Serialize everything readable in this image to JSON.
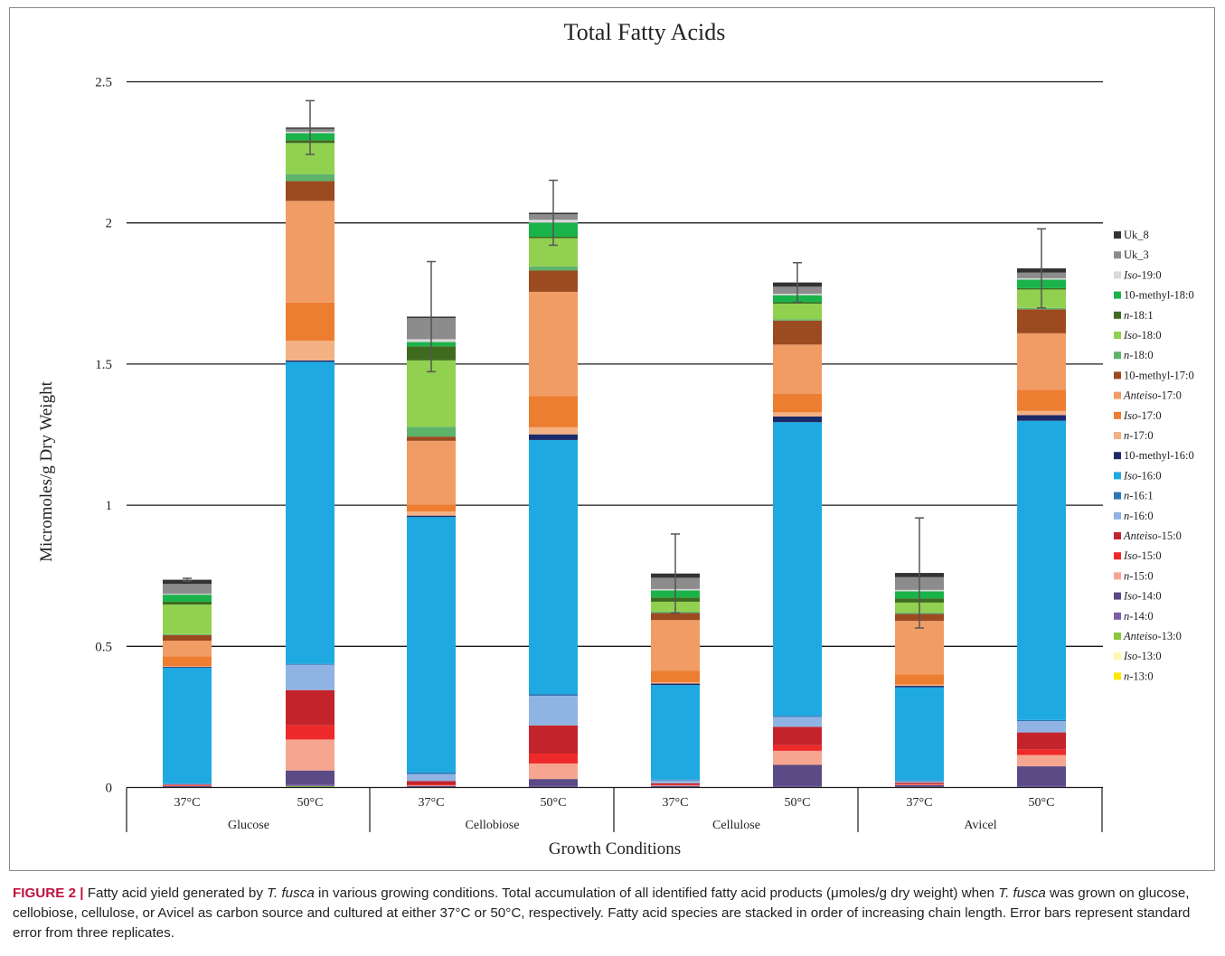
{
  "caption": {
    "label": "FIGURE 2 |",
    "segments": [
      {
        "t": " Fatty acid yield generated by ",
        "i": false
      },
      {
        "t": "T. fusca",
        "i": true
      },
      {
        "t": " in various growing conditions. Total accumulation of all identified fatty acid products (μmoles/g dry weight) when ",
        "i": false
      },
      {
        "t": "T. fusca",
        "i": true
      },
      {
        "t": " was grown on glucose, cellobiose, cellulose, or Avicel as carbon source and cultured at either 37°C or 50°C, respectively. Fatty acid species are stacked in order of increasing chain length. Error bars represent standard error from three replicates.",
        "i": false
      }
    ]
  },
  "chart_data": {
    "type": "bar",
    "stacked": true,
    "title": "Total Fatty Acids",
    "xlabel": "Growth Conditions",
    "ylabel": "Micromoles/g Dry Weight",
    "ylim": [
      0,
      2.5
    ],
    "yticks": [
      "0",
      "0.5",
      "1",
      "1.5",
      "2",
      "2.5"
    ],
    "yticks_values": [
      0,
      0.5,
      1,
      1.5,
      2,
      2.5
    ],
    "grid": true,
    "legend_position": "right",
    "categories": [
      "37°C",
      "50°C",
      "37°C",
      "50°C",
      "37°C",
      "50°C",
      "37°C",
      "50°C"
    ],
    "groups": [
      "Glucose",
      "Cellobiose",
      "Cellulose",
      "Avicel"
    ],
    "error": [
      0.005,
      0.095,
      0.195,
      0.115,
      0.14,
      0.07,
      0.195,
      0.14
    ],
    "series": [
      {
        "name": "n-13:0",
        "prefix": "n",
        "suffix": "-13:0",
        "color": "#ffe600",
        "values": [
          0,
          0,
          0,
          0,
          0,
          0,
          0,
          0
        ]
      },
      {
        "name": "Iso-13:0",
        "prefix": "Iso",
        "suffix": "-13:0",
        "color": "#fff6b0",
        "values": [
          0,
          0,
          0,
          0,
          0,
          0,
          0,
          0
        ]
      },
      {
        "name": "Anteiso-13:0",
        "prefix": "Anteiso",
        "suffix": "-13:0",
        "color": "#8cc63f",
        "values": [
          0,
          0.005,
          0,
          0,
          0,
          0,
          0,
          0
        ]
      },
      {
        "name": "n-14:0",
        "prefix": "n",
        "suffix": "-14:0",
        "color": "#7b5ea7",
        "values": [
          0.003,
          0.005,
          0.003,
          0.005,
          0.003,
          0.005,
          0.003,
          0.005
        ]
      },
      {
        "name": "Iso-14:0",
        "prefix": "Iso",
        "suffix": "-14:0",
        "color": "#5a4a86",
        "values": [
          0.002,
          0.05,
          0.003,
          0.025,
          0.003,
          0.075,
          0.005,
          0.07
        ]
      },
      {
        "name": "n-15:0",
        "prefix": "n",
        "suffix": "-15:0",
        "color": "#f6a690",
        "values": [
          0.002,
          0.11,
          0.002,
          0.055,
          0.002,
          0.05,
          0.002,
          0.04
        ]
      },
      {
        "name": "Iso-15:0",
        "prefix": "Iso",
        "suffix": "-15:0",
        "color": "#ee2a2a",
        "values": [
          0.001,
          0.05,
          0.003,
          0.035,
          0.002,
          0.02,
          0.002,
          0.02
        ]
      },
      {
        "name": "Anteiso-15:0",
        "prefix": "Anteiso",
        "suffix": "-15:0",
        "color": "#c3242b",
        "values": [
          0.002,
          0.125,
          0.012,
          0.1,
          0.005,
          0.065,
          0.005,
          0.06
        ]
      },
      {
        "name": "n-16:0",
        "prefix": "n",
        "suffix": "-16:0",
        "color": "#8fb4e3",
        "values": [
          0.002,
          0.09,
          0.025,
          0.105,
          0.01,
          0.035,
          0.005,
          0.04
        ]
      },
      {
        "name": "n-16:1",
        "prefix": "n",
        "suffix": "-16:1",
        "color": "#2e75b6",
        "values": [
          0.002,
          0.003,
          0.005,
          0.006,
          0.003,
          0.004,
          0.003,
          0.004
        ]
      },
      {
        "name": "Iso-16:0",
        "prefix": "Iso",
        "suffix": "-16:0",
        "color": "#1eaae1",
        "values": [
          0.41,
          1.07,
          0.905,
          0.9,
          0.335,
          1.04,
          0.33,
          1.06
        ]
      },
      {
        "name": "10-methyl-16:0",
        "prefix": "",
        "suffix": "10-methyl-16:0",
        "color": "#1b2a6b",
        "values": [
          0.003,
          0.005,
          0.005,
          0.02,
          0.005,
          0.02,
          0.005,
          0.02
        ]
      },
      {
        "name": "n-17:0",
        "prefix": "n",
        "suffix": "-17:0",
        "color": "#f4b183",
        "values": [
          0.003,
          0.07,
          0.015,
          0.025,
          0.005,
          0.015,
          0.005,
          0.015
        ]
      },
      {
        "name": "Iso-17:0",
        "prefix": "Iso",
        "suffix": "-17:0",
        "color": "#ed7d31",
        "values": [
          0.035,
          0.135,
          0.025,
          0.11,
          0.04,
          0.065,
          0.035,
          0.075
        ]
      },
      {
        "name": "Anteiso-17:0",
        "prefix": "Anteiso",
        "suffix": "-17:0",
        "color": "#f19c65",
        "values": [
          0.055,
          0.36,
          0.225,
          0.37,
          0.18,
          0.175,
          0.19,
          0.2
        ]
      },
      {
        "name": "10-methyl-17:0",
        "prefix": "",
        "suffix": "10-methyl-17:0",
        "color": "#9c4a1f",
        "values": [
          0.02,
          0.07,
          0.015,
          0.075,
          0.025,
          0.085,
          0.025,
          0.085
        ]
      },
      {
        "name": "n-18:0",
        "prefix": "n",
        "suffix": "-18:0",
        "color": "#5eb36b",
        "values": [
          0.003,
          0.025,
          0.035,
          0.015,
          0.005,
          0.005,
          0.005,
          0.005
        ]
      },
      {
        "name": "Iso-18:0",
        "prefix": "Iso",
        "suffix": "-18:0",
        "color": "#92d050",
        "values": [
          0.105,
          0.11,
          0.235,
          0.1,
          0.035,
          0.055,
          0.035,
          0.065
        ]
      },
      {
        "name": "n-18:1",
        "prefix": "n",
        "suffix": "-18:1",
        "color": "#3f6b1f",
        "values": [
          0.01,
          0.01,
          0.05,
          0.005,
          0.015,
          0.005,
          0.015,
          0.005
        ]
      },
      {
        "name": "10-methyl-18:0",
        "prefix": "",
        "suffix": "10-methyl-18:0",
        "color": "#1ab34a",
        "values": [
          0.025,
          0.025,
          0.015,
          0.05,
          0.025,
          0.025,
          0.025,
          0.03
        ]
      },
      {
        "name": "Iso-19:0",
        "prefix": "Iso",
        "suffix": "-19:0",
        "color": "#d9d9d9",
        "values": [
          0.003,
          0.005,
          0.01,
          0.01,
          0.005,
          0.005,
          0.005,
          0.005
        ]
      },
      {
        "name": "Uk_3",
        "prefix": "",
        "suffix": "Uk_3",
        "color": "#8c8c8c",
        "values": [
          0.035,
          0.01,
          0.075,
          0.02,
          0.04,
          0.025,
          0.045,
          0.02
        ]
      },
      {
        "name": "Uk_8",
        "prefix": "",
        "suffix": "Uk_8",
        "color": "#333333",
        "values": [
          0.015,
          0.005,
          0.005,
          0.005,
          0.015,
          0.015,
          0.015,
          0.015
        ]
      }
    ]
  }
}
